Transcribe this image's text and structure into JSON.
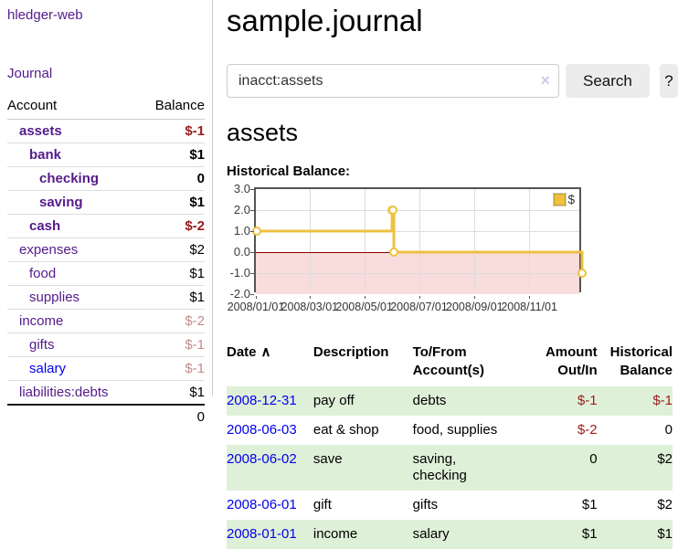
{
  "colors": {
    "link_visited_purple": "#551a8b",
    "link_blue": "#0000ee",
    "negative_red": "#9b1c1c",
    "negative_faded_red": "#c48a8a",
    "row_stripe_green": "#dff0d8",
    "chart_line_gold": "#edc240",
    "chart_negative_region_pink": "#f9dcdc",
    "chart_zero_line_red": "#8b0000",
    "button_gray": "#ececec"
  },
  "sidebar": {
    "brand": "hledger-web",
    "journal_link": "Journal",
    "accounts": {
      "header_account": "Account",
      "header_balance": "Balance",
      "rows": [
        {
          "name": "assets",
          "balance": "$-1",
          "level": 1,
          "bold": true,
          "balance_style": "neg",
          "link_color": "purple"
        },
        {
          "name": "bank",
          "balance": "$1",
          "level": 2,
          "bold": true,
          "balance_style": "normal",
          "link_color": "purple"
        },
        {
          "name": "checking",
          "balance": "0",
          "level": 3,
          "bold": true,
          "balance_style": "normal",
          "link_color": "purple"
        },
        {
          "name": "saving",
          "balance": "$1",
          "level": 3,
          "bold": true,
          "balance_style": "normal",
          "link_color": "purple"
        },
        {
          "name": "cash",
          "balance": "$-2",
          "level": 2,
          "bold": true,
          "balance_style": "neg",
          "link_color": "purple"
        },
        {
          "name": "expenses",
          "balance": "$2",
          "level": 1,
          "bold": false,
          "balance_style": "normal",
          "link_color": "purple"
        },
        {
          "name": "food",
          "balance": "$1",
          "level": 2,
          "bold": false,
          "balance_style": "normal",
          "link_color": "purple"
        },
        {
          "name": "supplies",
          "balance": "$1",
          "level": 2,
          "bold": false,
          "balance_style": "normal",
          "link_color": "purple"
        },
        {
          "name": "income",
          "balance": "$-2",
          "level": 1,
          "bold": false,
          "balance_style": "neg-faded",
          "link_color": "purple"
        },
        {
          "name": "gifts",
          "balance": "$-1",
          "level": 2,
          "bold": false,
          "balance_style": "neg-faded",
          "link_color": "purple"
        },
        {
          "name": "salary",
          "balance": "$-1",
          "level": 2,
          "bold": false,
          "balance_style": "neg-faded",
          "link_color": "blue"
        },
        {
          "name": "liabilities:debts",
          "balance": "$1",
          "level": 1,
          "bold": false,
          "balance_style": "normal",
          "link_color": "purple"
        }
      ],
      "total": "0"
    }
  },
  "main": {
    "title": "sample.journal",
    "search": {
      "value": "inacct:assets",
      "clear_icon": "×",
      "search_button": "Search",
      "help_button": "?"
    },
    "account_heading": "assets",
    "chart_label": "Historical Balance:"
  },
  "chart_data": {
    "type": "line",
    "step": true,
    "title": "Historical Balance",
    "series": [
      {
        "name": "$",
        "color": "#edc240",
        "points": [
          [
            "2008-01-01",
            1
          ],
          [
            "2008-06-01",
            2
          ],
          [
            "2008-06-02",
            2
          ],
          [
            "2008-06-03",
            0
          ],
          [
            "2008-12-31",
            -1
          ]
        ]
      }
    ],
    "xlim": [
      "2008-01-01",
      "2008-12-31"
    ],
    "ylim": [
      -2,
      3
    ],
    "y_ticks": [
      3.0,
      2.0,
      1.0,
      0.0,
      -1.0,
      -2.0
    ],
    "x_ticks": [
      {
        "date": "2008-01-01",
        "label": "2008/01/01"
      },
      {
        "date": "2008-03-01",
        "label": "2008/03/01"
      },
      {
        "date": "2008-05-01",
        "label": "2008/05/01"
      },
      {
        "date": "2008-07-01",
        "label": "2008/07/01"
      },
      {
        "date": "2008-09-01",
        "label": "2008/09/01"
      },
      {
        "date": "2008-11-01",
        "label": "2008/11/01"
      }
    ],
    "grid": true,
    "negative_region_shaded": true,
    "legend": {
      "label": "$",
      "position": "top-right"
    }
  },
  "register_table": {
    "sort_indicator": "∧",
    "headers": [
      [
        "Date",
        ""
      ],
      [
        "Description",
        ""
      ],
      [
        "To/From",
        "Account(s)"
      ],
      [
        "Amount",
        "Out/In"
      ],
      [
        "Historical",
        "Balance"
      ]
    ],
    "rows": [
      {
        "date": "2008-12-31",
        "description": "pay off",
        "accounts": "debts",
        "amount": "$-1",
        "amount_negative": true,
        "balance": "$-1",
        "balance_negative": true
      },
      {
        "date": "2008-06-03",
        "description": "eat & shop",
        "accounts": "food, supplies",
        "amount": "$-2",
        "amount_negative": true,
        "balance": "0",
        "balance_negative": false
      },
      {
        "date": "2008-06-02",
        "description": "save",
        "accounts": "saving, checking",
        "amount": "0",
        "amount_negative": false,
        "balance": "$2",
        "balance_negative": false
      },
      {
        "date": "2008-06-01",
        "description": "gift",
        "accounts": "gifts",
        "amount": "$1",
        "amount_negative": false,
        "balance": "$2",
        "balance_negative": false
      },
      {
        "date": "2008-01-01",
        "description": "income",
        "accounts": "salary",
        "amount": "$1",
        "amount_negative": false,
        "balance": "$1",
        "balance_negative": false
      }
    ]
  }
}
